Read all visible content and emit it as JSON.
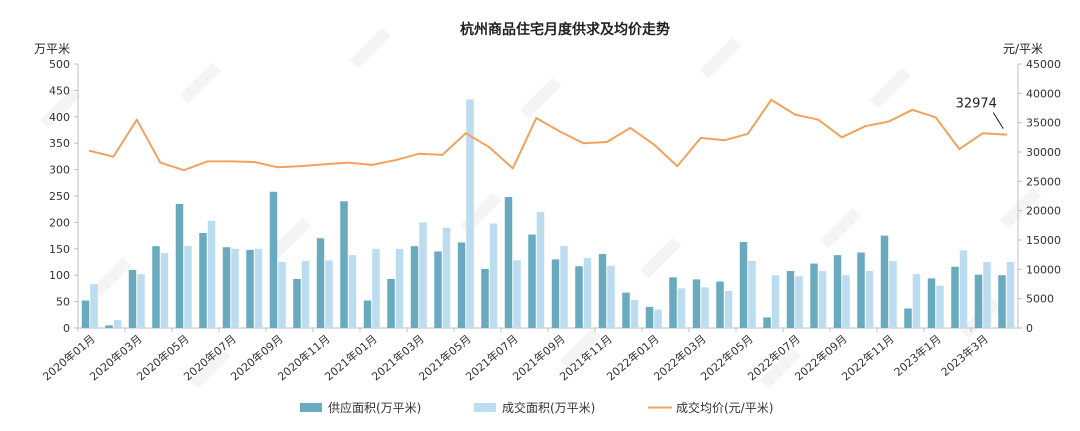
{
  "chart_data": {
    "type": "bar",
    "title": "杭州商品住宅月度供求及均价走势",
    "y_left_unit": "万平米",
    "y_right_unit": "元/平米",
    "y_left_ticks": [
      "0",
      "50",
      "100",
      "150",
      "200",
      "250",
      "300",
      "350",
      "400",
      "450",
      "500"
    ],
    "y_right_ticks": [
      "0",
      "5000",
      "10000",
      "15000",
      "20000",
      "25000",
      "30000",
      "35000",
      "40000",
      "45000"
    ],
    "ylim_left": [
      0,
      500
    ],
    "ylim_right": [
      0,
      45000
    ],
    "x_tick_labels": [
      "2020年01月",
      "2020年03月",
      "2020年05月",
      "2020年07月",
      "2020年09月",
      "2020年11月",
      "2021年01月",
      "2021年03月",
      "2021年05月",
      "2021年07月",
      "2021年09月",
      "2021年11月",
      "2022年01月",
      "2022年03月",
      "2022年05月",
      "2022年07月",
      "2022年09月",
      "2022年11月",
      "2023年1月",
      "2023年3月"
    ],
    "categories": [
      "2020-01",
      "2020-02",
      "2020-03",
      "2020-04",
      "2020-05",
      "2020-06",
      "2020-07",
      "2020-08",
      "2020-09",
      "2020-10",
      "2020-11",
      "2020-12",
      "2021-01",
      "2021-02",
      "2021-03",
      "2021-04",
      "2021-05",
      "2021-06",
      "2021-07",
      "2021-08",
      "2021-09",
      "2021-10",
      "2021-11",
      "2021-12",
      "2022-01",
      "2022-02",
      "2022-03",
      "2022-04",
      "2022-05",
      "2022-06",
      "2022-07",
      "2022-08",
      "2022-09",
      "2022-10",
      "2022-11",
      "2022-12",
      "2023-01",
      "2023-02",
      "2023-03",
      "2023-04"
    ],
    "series": [
      {
        "name": "供应面积(万平米)",
        "type": "bar",
        "axis": "left",
        "color": "#6aaabf",
        "values": [
          52,
          5,
          110,
          155,
          235,
          180,
          153,
          148,
          258,
          93,
          170,
          240,
          52,
          93,
          155,
          145,
          162,
          112,
          248,
          177,
          130,
          117,
          140,
          67,
          40,
          96,
          92,
          88,
          163,
          20,
          108,
          122,
          138,
          143,
          175,
          37,
          94,
          116,
          101,
          100
        ]
      },
      {
        "name": "成交面积(万平米)",
        "type": "bar",
        "axis": "left",
        "color": "#bcdcef",
        "values": [
          83,
          15,
          102,
          142,
          155,
          203,
          150,
          150,
          125,
          127,
          128,
          138,
          150,
          150,
          200,
          190,
          433,
          198,
          128,
          220,
          155,
          133,
          118,
          53,
          35,
          75,
          77,
          70,
          127,
          100,
          98,
          108,
          100,
          108,
          127,
          102,
          80,
          147,
          125,
          125
        ]
      },
      {
        "name": "成交均价(元/平米)",
        "type": "line",
        "axis": "right",
        "color": "#f2a25c",
        "values": [
          30200,
          29200,
          35500,
          28200,
          26900,
          28400,
          28400,
          28300,
          27400,
          27600,
          27900,
          28200,
          27800,
          28600,
          29700,
          29500,
          33200,
          30800,
          27200,
          35800,
          33500,
          31500,
          31700,
          34100,
          31300,
          27600,
          32400,
          32000,
          33100,
          38900,
          36400,
          35500,
          32500,
          34400,
          35200,
          37200,
          35900,
          30500,
          33200,
          32974
        ]
      }
    ],
    "annotation": {
      "text": "32974",
      "category": "2023-04"
    },
    "legend_position": "bottom",
    "grid": false
  }
}
